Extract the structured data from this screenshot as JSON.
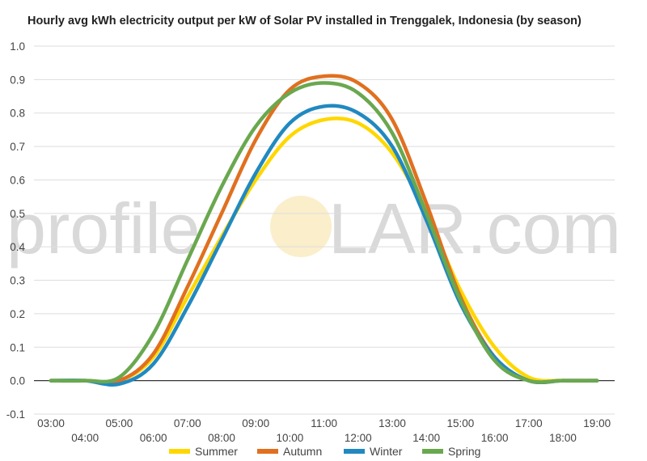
{
  "chart_data": {
    "type": "line",
    "title": "Hourly avg kWh electricity output per kW of Solar PV installed in Trenggalek, Indonesia (by season)",
    "xlabel": "",
    "ylabel": "",
    "ylim": [
      -0.1,
      1.0
    ],
    "yticks": [
      "-0.1",
      "0.0",
      "0.1",
      "0.2",
      "0.3",
      "0.4",
      "0.5",
      "0.6",
      "0.7",
      "0.8",
      "0.9",
      "1.0"
    ],
    "x": [
      "03:00",
      "04:00",
      "05:00",
      "06:00",
      "07:00",
      "08:00",
      "09:00",
      "10:00",
      "11:00",
      "12:00",
      "13:00",
      "14:00",
      "15:00",
      "16:00",
      "17:00",
      "18:00",
      "19:00"
    ],
    "grid": true,
    "legend_position": "bottom",
    "watermark": {
      "left": "profile",
      "right": "LAR.com"
    },
    "series": [
      {
        "name": "Summer",
        "color": "#ffd700",
        "values": [
          0,
          0,
          0,
          0.07,
          0.25,
          0.43,
          0.6,
          0.73,
          0.78,
          0.77,
          0.68,
          0.5,
          0.27,
          0.1,
          0.01,
          0,
          0
        ]
      },
      {
        "name": "Autumn",
        "color": "#e07020",
        "values": [
          0,
          0,
          0,
          0.08,
          0.28,
          0.5,
          0.72,
          0.87,
          0.91,
          0.89,
          0.78,
          0.53,
          0.25,
          0.07,
          0,
          0,
          0
        ]
      },
      {
        "name": "Winter",
        "color": "#2189c0",
        "values": [
          0,
          0,
          -0.01,
          0.05,
          0.22,
          0.42,
          0.62,
          0.77,
          0.82,
          0.8,
          0.7,
          0.48,
          0.23,
          0.07,
          0,
          0,
          0
        ]
      },
      {
        "name": "Spring",
        "color": "#6aa84f",
        "values": [
          0,
          0,
          0.01,
          0.14,
          0.36,
          0.58,
          0.76,
          0.86,
          0.89,
          0.86,
          0.74,
          0.5,
          0.24,
          0.06,
          0,
          0,
          0
        ]
      }
    ]
  }
}
